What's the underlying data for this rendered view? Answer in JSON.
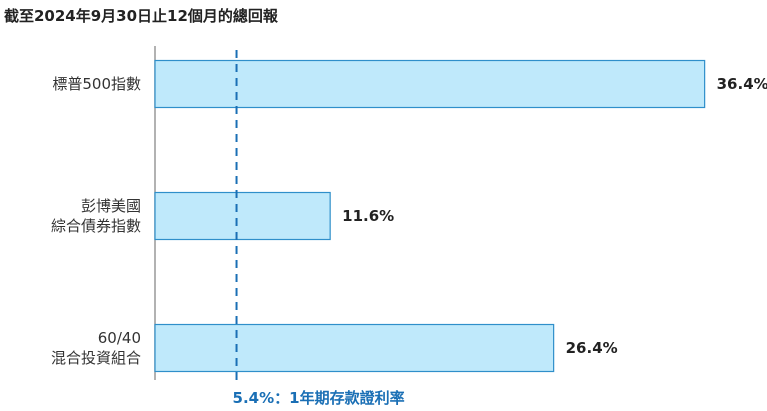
{
  "chart_data": {
    "type": "bar",
    "orientation": "horizontal",
    "title": "截至2024年9月30日止12個月的總回報",
    "categories": [
      [
        "標普500指數"
      ],
      [
        "彭博美國",
        "綜合債券指數"
      ],
      [
        "60/40",
        "混合投資組合"
      ]
    ],
    "values": [
      36.4,
      11.6,
      26.4
    ],
    "value_labels": [
      "36.4%",
      "11.6%",
      "26.4%"
    ],
    "xlim": [
      0,
      40
    ],
    "reference_line": {
      "value": 5.4,
      "label": "5.4%：1年期存款證利率"
    },
    "colors": {
      "bar_fill": "#bfe9fb",
      "bar_stroke": "#2f8fca",
      "reference": "#1a6fb5",
      "axis": "#999999"
    }
  }
}
